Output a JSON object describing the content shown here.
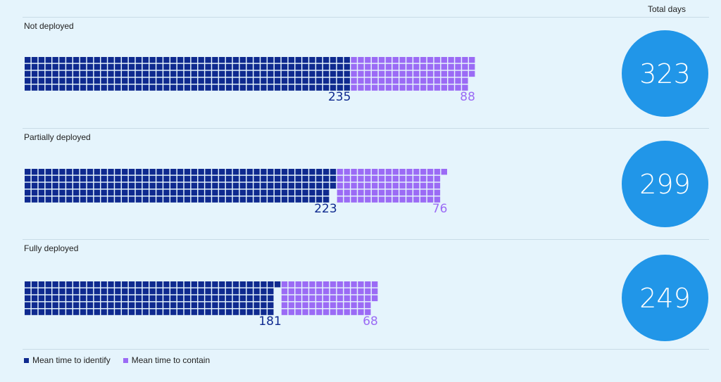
{
  "header": {
    "total_label": "Total days"
  },
  "colors": {
    "identify": "#0f2a8f",
    "contain": "#9b6bf5",
    "circle": "#2196e8"
  },
  "chart_data": {
    "type": "waffle",
    "unit": "days",
    "categories": [
      "Not deployed",
      "Partially deployed",
      "Fully deployed"
    ],
    "series": [
      {
        "name": "Mean time to identify",
        "values": [
          235,
          223,
          181
        ]
      },
      {
        "name": "Mean time to contain",
        "values": [
          88,
          76,
          68
        ]
      }
    ],
    "totals": [
      323,
      299,
      249
    ],
    "legend_position": "bottom-left"
  },
  "legend": {
    "identify_label": "Mean time to identify",
    "contain_label": "Mean time to contain"
  }
}
